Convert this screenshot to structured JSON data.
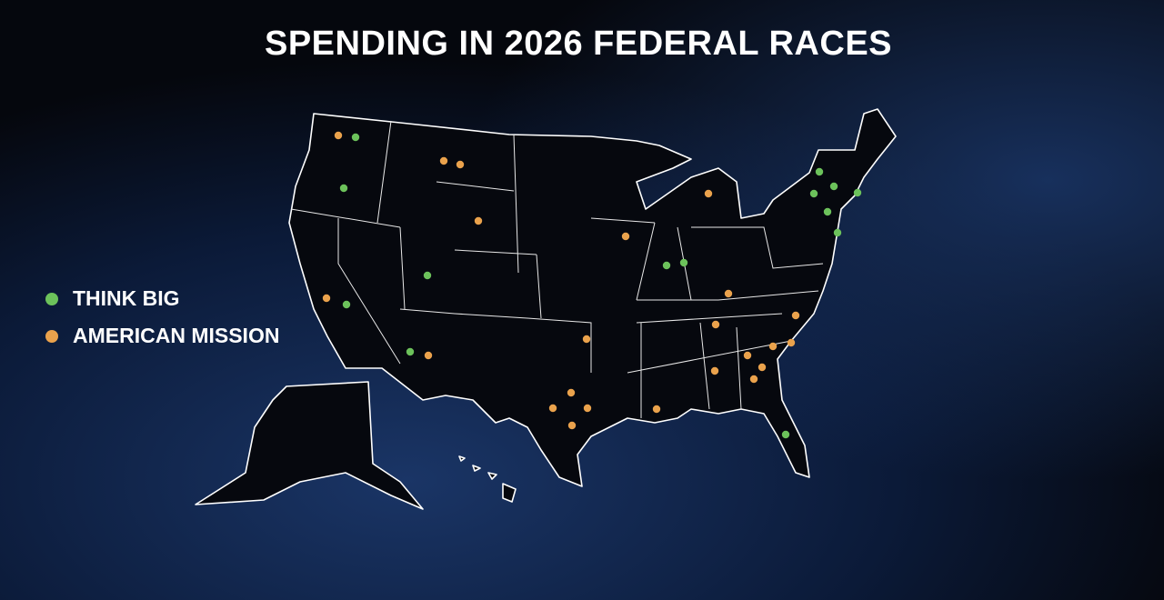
{
  "title": "SPENDING IN 2026 FEDERAL RACES",
  "legend": [
    {
      "label": "THINK BIG",
      "color": "#6cc25b"
    },
    {
      "label": "AMERICAN MISSION",
      "color": "#eaa24c"
    }
  ]
}
